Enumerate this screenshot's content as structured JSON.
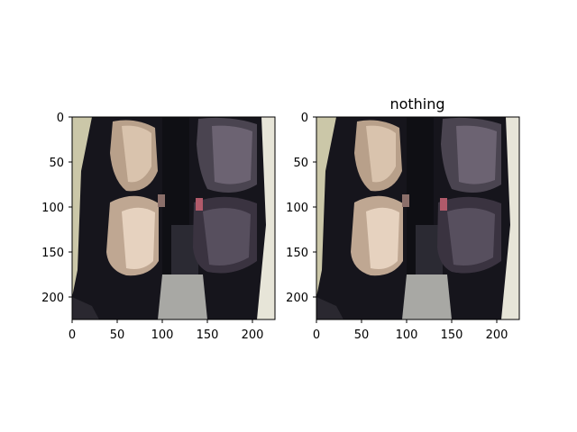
{
  "figure": {
    "panels": [
      {
        "title": "",
        "image_description": "car rear seats viewed from above",
        "x_ticks": [
          "0",
          "50",
          "100",
          "150",
          "200"
        ],
        "y_ticks": [
          "0",
          "50",
          "100",
          "150",
          "200"
        ],
        "xlim": [
          0,
          224
        ],
        "ylim": [
          224,
          0
        ]
      },
      {
        "title": "nothing",
        "image_description": "car rear seats viewed from above",
        "x_ticks": [
          "0",
          "50",
          "100",
          "150",
          "200"
        ],
        "y_ticks": [
          "0",
          "50",
          "100",
          "150",
          "200"
        ],
        "xlim": [
          0,
          224
        ],
        "ylim": [
          224,
          0
        ]
      }
    ]
  },
  "colors": {
    "seat_left": "#c9b29a",
    "seat_right": "#3b3440",
    "floor": "#1b1a20",
    "trim": "#cbc7a8"
  }
}
